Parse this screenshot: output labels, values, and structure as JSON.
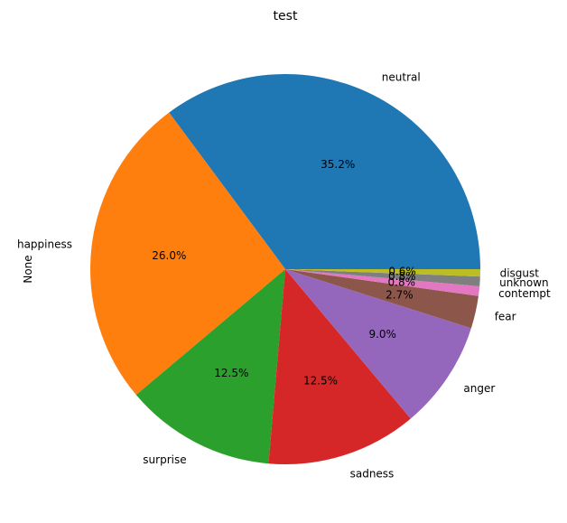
{
  "chart_data": {
    "type": "pie",
    "title": "test",
    "ylabel": "None",
    "slices": [
      {
        "label": "neutral",
        "value": 35.2,
        "pct_label": "35.2%",
        "color": "#1f77b4"
      },
      {
        "label": "happiness",
        "value": 26.0,
        "pct_label": "26.0%",
        "color": "#ff7f0e"
      },
      {
        "label": "surprise",
        "value": 12.5,
        "pct_label": "12.5%",
        "color": "#2ca02c"
      },
      {
        "label": "sadness",
        "value": 12.5,
        "pct_label": "12.5%",
        "color": "#d62728"
      },
      {
        "label": "anger",
        "value": 9.0,
        "pct_label": "9.0%",
        "color": "#9467bd"
      },
      {
        "label": "fear",
        "value": 2.7,
        "pct_label": "2.7%",
        "color": "#8c564b"
      },
      {
        "label": "contempt",
        "value": 0.8,
        "pct_label": "0.8%",
        "color": "#e377c2"
      },
      {
        "label": "unknown",
        "value": 0.8,
        "pct_label": "0.8%",
        "color": "#7f7f7f"
      },
      {
        "label": "disgust",
        "value": 0.6,
        "pct_label": "0.6%",
        "color": "#bcbd22"
      }
    ]
  }
}
